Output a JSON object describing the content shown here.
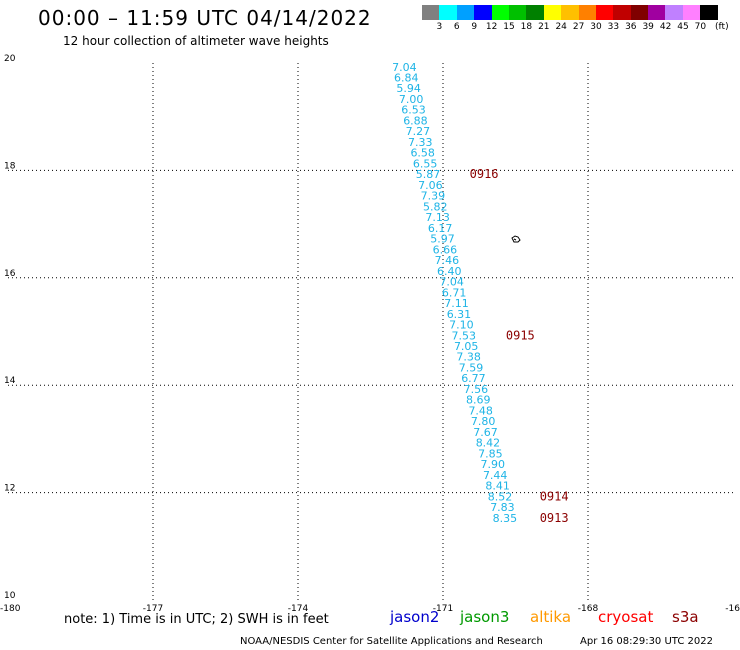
{
  "title": "00:00 – 11:59 UTC 04/14/2022",
  "subtitle": "12 hour collection of altimeter wave heights",
  "legend": {
    "colors": [
      "#808080",
      "#00ffff",
      "#00a0ff",
      "#0000ff",
      "#00ff00",
      "#00c000",
      "#008000",
      "#ffff00",
      "#ffc000",
      "#ff8000",
      "#ff0000",
      "#c00000",
      "#800000",
      "#a000a0",
      "#c080ff",
      "#ff80ff",
      "#000000"
    ],
    "labels": [
      "3",
      "6",
      "9",
      "12",
      "15",
      "18",
      "21",
      "24",
      "27",
      "30",
      "33",
      "36",
      "39",
      "42",
      "45",
      "70"
    ],
    "unit": "(ft)"
  },
  "axes": {
    "lat_labels": [
      "20",
      "18",
      "16",
      "14",
      "12",
      "10"
    ],
    "lon_labels": [
      "-180",
      "-177",
      "-174",
      "-171",
      "-168",
      "-16"
    ]
  },
  "map": {
    "lon_range": [
      -180,
      -165
    ],
    "lat_range": [
      10,
      20
    ]
  },
  "observations": [
    {
      "lat": 19.93,
      "lon": -171.8,
      "swh": "7.04"
    },
    {
      "lat": 19.73,
      "lon": -171.76,
      "swh": "6.84"
    },
    {
      "lat": 19.53,
      "lon": -171.71,
      "swh": "5.94"
    },
    {
      "lat": 19.33,
      "lon": -171.66,
      "swh": "7.00"
    },
    {
      "lat": 19.13,
      "lon": -171.61,
      "swh": "6.53"
    },
    {
      "lat": 18.93,
      "lon": -171.57,
      "swh": "6.88"
    },
    {
      "lat": 18.73,
      "lon": -171.52,
      "swh": "7.27"
    },
    {
      "lat": 18.53,
      "lon": -171.47,
      "swh": "7.33"
    },
    {
      "lat": 18.33,
      "lon": -171.42,
      "swh": "6.58"
    },
    {
      "lat": 18.13,
      "lon": -171.37,
      "swh": "6.55"
    },
    {
      "lat": 17.93,
      "lon": -171.31,
      "swh": "5.87"
    },
    {
      "lat": 17.73,
      "lon": -171.26,
      "swh": "7.06"
    },
    {
      "lat": 17.53,
      "lon": -171.21,
      "swh": "7.39"
    },
    {
      "lat": 17.33,
      "lon": -171.16,
      "swh": "5.82"
    },
    {
      "lat": 17.13,
      "lon": -171.11,
      "swh": "7.13"
    },
    {
      "lat": 16.93,
      "lon": -171.06,
      "swh": "6.17"
    },
    {
      "lat": 16.73,
      "lon": -171.01,
      "swh": "5.97"
    },
    {
      "lat": 16.53,
      "lon": -170.96,
      "swh": "6.66"
    },
    {
      "lat": 16.33,
      "lon": -170.92,
      "swh": "7.46"
    },
    {
      "lat": 16.13,
      "lon": -170.87,
      "swh": "6.40"
    },
    {
      "lat": 15.93,
      "lon": -170.82,
      "swh": "7.04"
    },
    {
      "lat": 15.73,
      "lon": -170.77,
      "swh": "6.71"
    },
    {
      "lat": 15.53,
      "lon": -170.72,
      "swh": "7.11"
    },
    {
      "lat": 15.33,
      "lon": -170.67,
      "swh": "6.31"
    },
    {
      "lat": 15.13,
      "lon": -170.62,
      "swh": "7.10"
    },
    {
      "lat": 14.93,
      "lon": -170.57,
      "swh": "7.53"
    },
    {
      "lat": 14.73,
      "lon": -170.52,
      "swh": "7.05"
    },
    {
      "lat": 14.53,
      "lon": -170.47,
      "swh": "7.38"
    },
    {
      "lat": 14.33,
      "lon": -170.42,
      "swh": "7.59"
    },
    {
      "lat": 14.13,
      "lon": -170.37,
      "swh": "6.77"
    },
    {
      "lat": 13.93,
      "lon": -170.32,
      "swh": "7.56"
    },
    {
      "lat": 13.73,
      "lon": -170.27,
      "swh": "8.69"
    },
    {
      "lat": 13.53,
      "lon": -170.22,
      "swh": "7.48"
    },
    {
      "lat": 13.33,
      "lon": -170.17,
      "swh": "7.80"
    },
    {
      "lat": 13.13,
      "lon": -170.12,
      "swh": "7.67"
    },
    {
      "lat": 12.93,
      "lon": -170.07,
      "swh": "8.42"
    },
    {
      "lat": 12.73,
      "lon": -170.02,
      "swh": "7.85"
    },
    {
      "lat": 12.53,
      "lon": -169.97,
      "swh": "7.90"
    },
    {
      "lat": 12.33,
      "lon": -169.92,
      "swh": "7.44"
    },
    {
      "lat": 12.13,
      "lon": -169.87,
      "swh": "8.41"
    },
    {
      "lat": 11.93,
      "lon": -169.82,
      "swh": "8.52"
    },
    {
      "lat": 11.73,
      "lon": -169.77,
      "swh": "7.83"
    },
    {
      "lat": 11.53,
      "lon": -169.72,
      "swh": "8.35"
    }
  ],
  "pass_times": [
    {
      "lat": 17.93,
      "lon": -170.15,
      "label": "0916"
    },
    {
      "lat": 14.93,
      "lon": -169.4,
      "label": "0915"
    },
    {
      "lat": 11.93,
      "lon": -168.7,
      "label": "0914"
    },
    {
      "lat": 11.53,
      "lon": -168.7,
      "label": "0913"
    }
  ],
  "note": "note: 1) Time is in UTC; 2) SWH is in feet",
  "satellites": [
    {
      "name": "jason2",
      "color": "#0000cc"
    },
    {
      "name": "jason3",
      "color": "#009900"
    },
    {
      "name": "altika",
      "color": "#ff9900"
    },
    {
      "name": "cryosat",
      "color": "#ff0000"
    },
    {
      "name": "s3a",
      "color": "#8b0000"
    }
  ],
  "credit": "NOAA/NESDIS Center for Satellite Applications and Research",
  "timestamp": "Apr 16 08:29:30 UTC 2022"
}
